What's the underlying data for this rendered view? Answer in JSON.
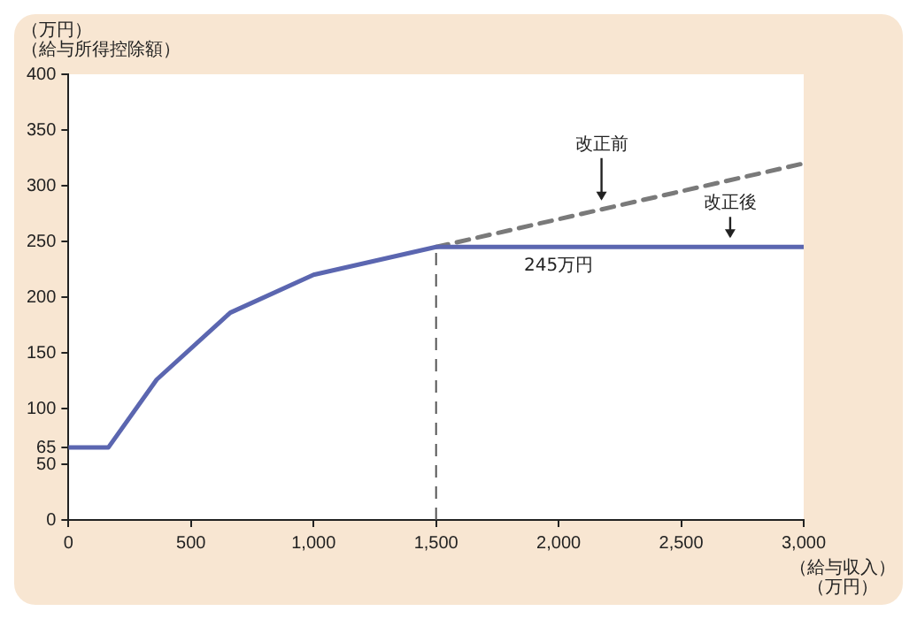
{
  "chart_data": {
    "type": "line",
    "xlabel": "（給与収入）（万円）",
    "ylabel": "（万円）（給与所得控除額）",
    "series": [
      {
        "name": "改正後",
        "color": "#5b66b0",
        "x": [
          0,
          162.5,
          360,
          660,
          1000,
          1500,
          3000
        ],
        "values": [
          65,
          65,
          126,
          186,
          220,
          245,
          245
        ],
        "line_style": "solid"
      },
      {
        "name": "改正前",
        "color": "#7a7a7a",
        "x": [
          1500,
          3000
        ],
        "values": [
          245,
          320
        ],
        "line_style": "dashed"
      }
    ],
    "xlim": [
      0,
      3000
    ],
    "xticks": [
      0,
      500,
      {
        "value": 1000,
        "label": "1,000"
      },
      {
        "value": 1500,
        "label": "1,500"
      },
      {
        "value": 2000,
        "label": "2,000"
      },
      {
        "value": 2500,
        "label": "2,500"
      },
      {
        "value": 3000,
        "label": "3,000"
      }
    ],
    "ylim": [
      0,
      400
    ],
    "yticks": [
      0,
      50,
      65,
      100,
      150,
      200,
      250,
      300,
      350,
      400
    ],
    "ref_lines": [
      {
        "axis": "x",
        "value": 1500,
        "color": "#555555",
        "line_style": "dashed"
      }
    ],
    "annotations": [
      {
        "text": "245万円",
        "x": 2000,
        "y": 245
      }
    ],
    "grid": false,
    "legend": false,
    "marker": "none"
  }
}
